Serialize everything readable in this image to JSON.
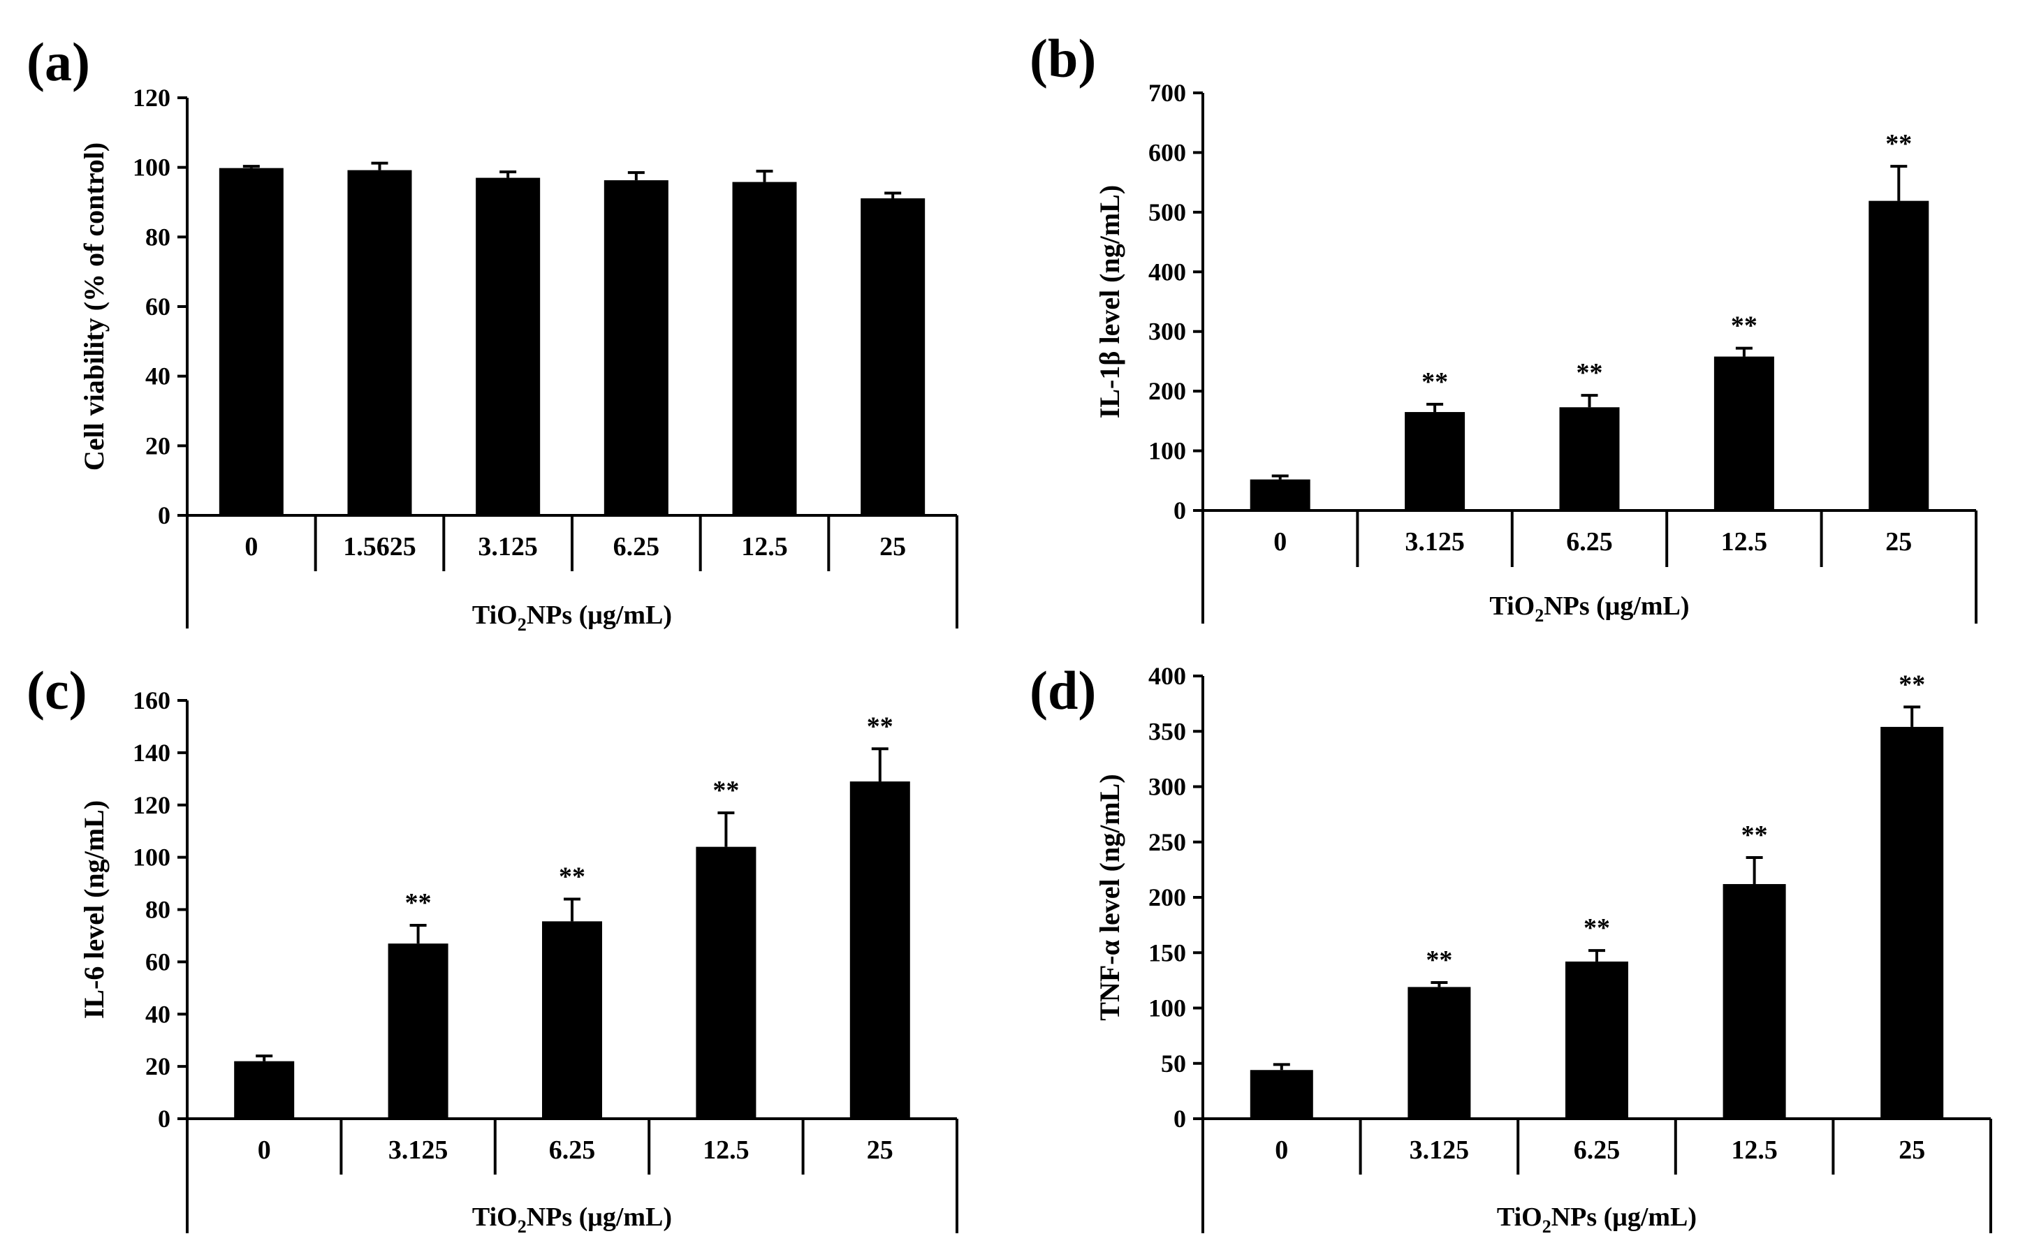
{
  "chart_data": [
    {
      "type": "bar",
      "panel": "(a)",
      "title": "",
      "categories": [
        "0",
        "1.5625",
        "3.125",
        "6.25",
        "12.5",
        "25"
      ],
      "values": [
        99.8,
        99.2,
        97,
        96.3,
        95.8,
        91.1
      ],
      "errors": [
        0.5,
        2,
        1.7,
        2.2,
        3.1,
        1.5
      ],
      "significance": [
        "",
        "",
        "",
        "",
        "",
        ""
      ],
      "ylabel": "Cell viability (% of control)",
      "xlabel_main": "TiO",
      "xlabel_sub": "2",
      "xlabel_rest": "NPs (μg/mL)",
      "ylim": [
        0,
        120
      ],
      "yticks": [
        "0",
        "20",
        "40",
        "60",
        "80",
        "100",
        "120"
      ],
      "color": "#000000"
    },
    {
      "type": "bar",
      "panel": "(b)",
      "title": "",
      "categories": [
        "0",
        "3.125",
        "6.25",
        "12.5",
        "25"
      ],
      "values": [
        52,
        165,
        173,
        258,
        519
      ],
      "errors": [
        6,
        13,
        20,
        14,
        58
      ],
      "significance": [
        "",
        "**",
        "**",
        "**",
        "**"
      ],
      "ylabel": "IL-1β level (ng/mL)",
      "xlabel_main": "TiO",
      "xlabel_sub": "2",
      "xlabel_rest": "NPs (μg/mL)",
      "ylim": [
        0,
        700
      ],
      "yticks": [
        "0",
        "100",
        "200",
        "300",
        "400",
        "500",
        "600",
        "700"
      ],
      "color": "#000000"
    },
    {
      "type": "bar",
      "panel": "(c)",
      "title": "",
      "categories": [
        "0",
        "3.125",
        "6.25",
        "12.5",
        "25"
      ],
      "values": [
        22,
        67,
        75.5,
        104,
        129
      ],
      "errors": [
        2,
        7,
        8.5,
        13,
        12.5
      ],
      "significance": [
        "",
        "**",
        "**",
        "**",
        "**"
      ],
      "ylabel": "IL-6 level (ng/mL)",
      "xlabel_main": "TiO",
      "xlabel_sub": "2",
      "xlabel_rest": "NPs (μg/mL)",
      "ylim": [
        0,
        160
      ],
      "yticks": [
        "0",
        "20",
        "40",
        "60",
        "80",
        "100",
        "120",
        "140",
        "160"
      ],
      "color": "#000000"
    },
    {
      "type": "bar",
      "panel": "(d)",
      "title": "",
      "categories": [
        "0",
        "3.125",
        "6.25",
        "12.5",
        "25"
      ],
      "values": [
        44,
        119,
        142,
        212,
        354
      ],
      "errors": [
        5,
        4,
        10,
        24,
        18
      ],
      "significance": [
        "",
        "**",
        "**",
        "**",
        "**"
      ],
      "ylabel": "TNF-α level (ng/mL)",
      "xlabel_main": "TiO",
      "xlabel_sub": "2",
      "xlabel_rest": "NPs (μg/mL)",
      "ylim": [
        0,
        400
      ],
      "yticks": [
        "0",
        "50",
        "100",
        "150",
        "200",
        "250",
        "300",
        "350",
        "400"
      ],
      "color": "#000000"
    }
  ]
}
